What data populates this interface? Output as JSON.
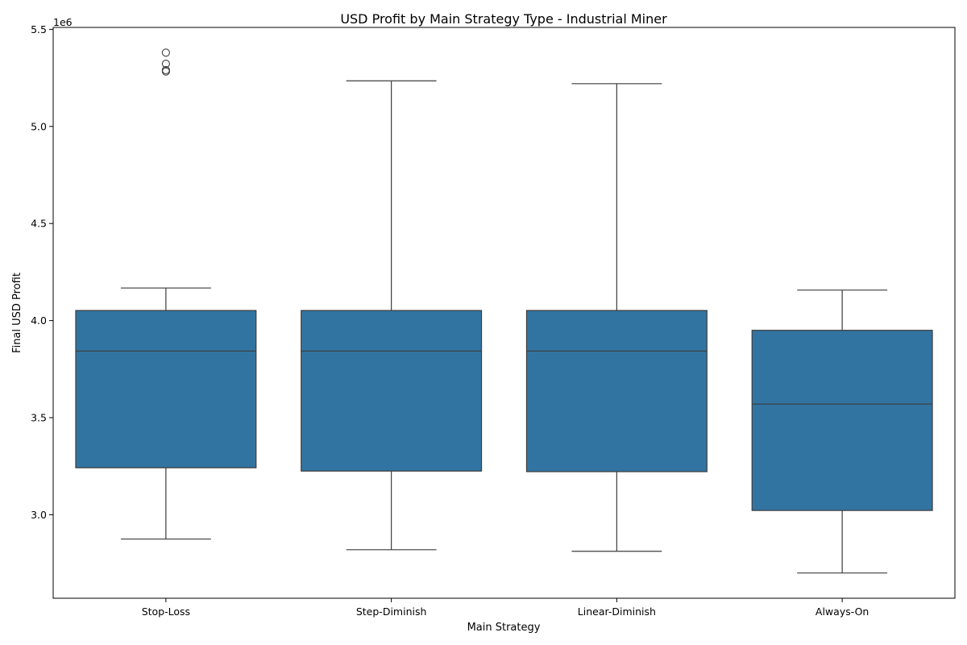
{
  "chart_data": {
    "type": "box",
    "title": "USD Profit by Main Strategy Type - Industrial Miner",
    "xlabel": "Main Strategy",
    "ylabel": "Final USD Profit",
    "y_offset_label": "1e6",
    "y_scale_factor": 1000000,
    "ylim": [
      2570000,
      5510000
    ],
    "yticks": [
      3000000,
      3500000,
      4000000,
      4500000,
      5000000,
      5500000
    ],
    "ytick_labels": [
      "3.0",
      "3.5",
      "4.0",
      "4.5",
      "5.0",
      "5.5"
    ],
    "grid": false,
    "colors": {
      "box_fill": "#3274a1",
      "line": "#3d3d3d"
    },
    "categories": [
      "Stop-Loss",
      "Step-Diminish",
      "Linear-Diminish",
      "Always-On"
    ],
    "series": [
      {
        "category": "Stop-Loss",
        "whisker_low": 2875000,
        "q1": 3242000,
        "median": 3843000,
        "q3": 4052000,
        "whisker_high": 4168000,
        "outliers": [
          5380000,
          5323000,
          5290000,
          5283000
        ]
      },
      {
        "category": "Step-Diminish",
        "whisker_low": 2820000,
        "q1": 3225000,
        "median": 3843000,
        "q3": 4052000,
        "whisker_high": 5235000,
        "outliers": []
      },
      {
        "category": "Linear-Diminish",
        "whisker_low": 2812000,
        "q1": 3222000,
        "median": 3843000,
        "q3": 4052000,
        "whisker_high": 5220000,
        "outliers": []
      },
      {
        "category": "Always-On",
        "whisker_low": 2700000,
        "q1": 3022000,
        "median": 3570000,
        "q3": 3950000,
        "whisker_high": 4157000,
        "outliers": []
      }
    ]
  }
}
